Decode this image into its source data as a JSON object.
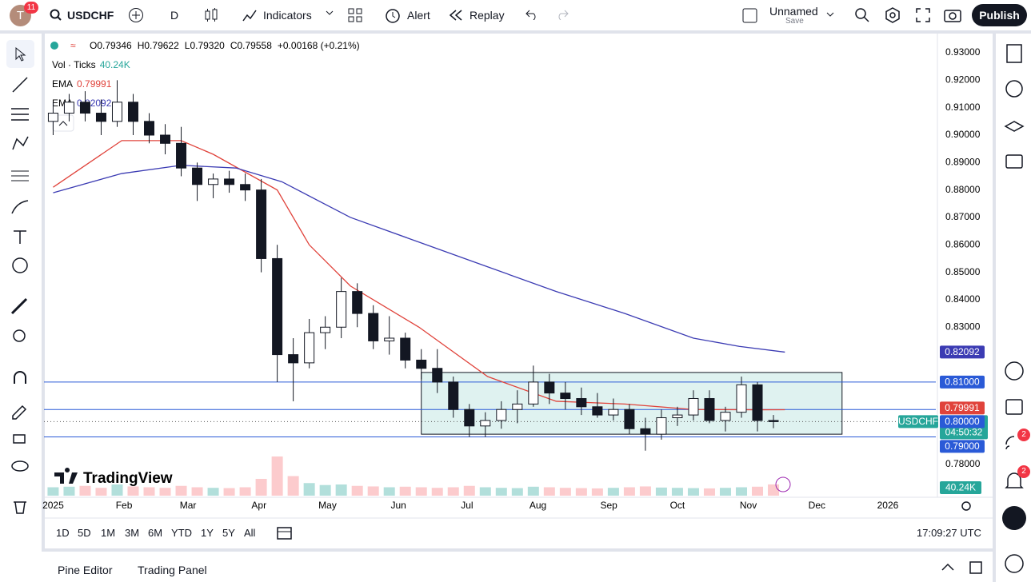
{
  "header": {
    "avatar": "T",
    "avatar_badge": "11",
    "symbol": "USDCHF",
    "interval": "D",
    "indicators": "Indicators",
    "alert": "Alert",
    "replay": "Replay",
    "layout_name": "Unnamed",
    "save": "Save",
    "publish": "Publish"
  },
  "chart_data": {
    "type": "candlestick",
    "legend_ohlc": [
      "O0.79346",
      "H0.79622",
      "L0.79320",
      "C0.79558",
      "+0.00168 (+0.21%)"
    ],
    "volume_label": "Vol · Ticks",
    "volume_value": "40.24K",
    "indicator_legend": [
      {
        "name": "EMA",
        "value": "0.79991",
        "color": "#e0433b"
      },
      {
        "name": "EMA",
        "value": "0.82092",
        "color": "#3b3bb3"
      }
    ],
    "logo": "TradingView",
    "xlim": [
      -4,
      386
    ],
    "xticks": [
      {
        "value": 0,
        "label": "2025"
      },
      {
        "value": 31,
        "label": "Feb"
      },
      {
        "value": 59,
        "label": "Mar"
      },
      {
        "value": 90,
        "label": "Apr"
      },
      {
        "value": 120,
        "label": "May"
      },
      {
        "value": 151,
        "label": "Jun"
      },
      {
        "value": 181,
        "label": "Jul"
      },
      {
        "value": 212,
        "label": "Aug"
      },
      {
        "value": 243,
        "label": "Sep"
      },
      {
        "value": 273,
        "label": "Oct"
      },
      {
        "value": 304,
        "label": "Nov"
      },
      {
        "value": 334,
        "label": "Dec"
      },
      {
        "value": 365,
        "label": "2026"
      }
    ],
    "ylim": [
      0.7686,
      0.937
    ],
    "yticks": [
      {
        "value": 0.93,
        "label": "0.93000"
      },
      {
        "value": 0.92,
        "label": "0.92000"
      },
      {
        "value": 0.91,
        "label": "0.91000"
      },
      {
        "value": 0.9,
        "label": "0.90000"
      },
      {
        "value": 0.89,
        "label": "0.89000"
      },
      {
        "value": 0.88,
        "label": "0.88000"
      },
      {
        "value": 0.87,
        "label": "0.87000"
      },
      {
        "value": 0.86,
        "label": "0.86000"
      },
      {
        "value": 0.85,
        "label": "0.85000"
      },
      {
        "value": 0.84,
        "label": "0.84000"
      },
      {
        "value": 0.83,
        "label": "0.83000"
      },
      {
        "value": 0.78,
        "label": "0.78000"
      }
    ],
    "x": [
      0,
      7,
      14,
      21,
      28,
      35,
      42,
      49,
      56,
      63,
      70,
      77,
      84,
      91,
      98,
      105,
      112,
      119,
      126,
      133,
      140,
      147,
      154,
      161,
      168,
      175,
      182,
      189,
      196,
      203,
      210,
      217,
      224,
      231,
      238,
      245,
      252,
      259,
      266,
      273,
      280,
      287,
      294,
      301,
      308,
      315
    ],
    "open": [
      0.905,
      0.908,
      0.912,
      0.908,
      0.905,
      0.912,
      0.905,
      0.9,
      0.897,
      0.888,
      0.882,
      0.884,
      0.882,
      0.88,
      0.855,
      0.82,
      0.817,
      0.828,
      0.83,
      0.843,
      0.835,
      0.825,
      0.826,
      0.818,
      0.815,
      0.81,
      0.8,
      0.794,
      0.796,
      0.8,
      0.802,
      0.81,
      0.806,
      0.804,
      0.801,
      0.798,
      0.8,
      0.793,
      0.791,
      0.797,
      0.798,
      0.804,
      0.796,
      0.799,
      0.809,
      0.796
    ],
    "high": [
      0.912,
      0.915,
      0.916,
      0.913,
      0.92,
      0.915,
      0.908,
      0.904,
      0.903,
      0.89,
      0.886,
      0.887,
      0.886,
      0.884,
      0.86,
      0.826,
      0.833,
      0.834,
      0.848,
      0.846,
      0.838,
      0.834,
      0.828,
      0.822,
      0.822,
      0.812,
      0.802,
      0.799,
      0.803,
      0.807,
      0.816,
      0.813,
      0.81,
      0.808,
      0.806,
      0.804,
      0.802,
      0.797,
      0.8,
      0.801,
      0.807,
      0.807,
      0.801,
      0.812,
      0.81,
      0.798
    ],
    "low": [
      0.9,
      0.905,
      0.905,
      0.9,
      0.903,
      0.9,
      0.897,
      0.893,
      0.885,
      0.876,
      0.877,
      0.879,
      0.876,
      0.85,
      0.81,
      0.803,
      0.815,
      0.822,
      0.826,
      0.83,
      0.822,
      0.82,
      0.815,
      0.811,
      0.806,
      0.797,
      0.79,
      0.79,
      0.793,
      0.795,
      0.801,
      0.802,
      0.8,
      0.798,
      0.797,
      0.796,
      0.791,
      0.785,
      0.789,
      0.794,
      0.796,
      0.795,
      0.792,
      0.797,
      0.792,
      0.7932
    ],
    "close": [
      0.908,
      0.912,
      0.908,
      0.905,
      0.912,
      0.905,
      0.9,
      0.897,
      0.888,
      0.882,
      0.884,
      0.882,
      0.88,
      0.855,
      0.82,
      0.817,
      0.828,
      0.83,
      0.843,
      0.835,
      0.825,
      0.826,
      0.818,
      0.815,
      0.81,
      0.8,
      0.794,
      0.796,
      0.8,
      0.802,
      0.81,
      0.806,
      0.804,
      0.801,
      0.798,
      0.8,
      0.793,
      0.791,
      0.797,
      0.798,
      0.804,
      0.796,
      0.799,
      0.809,
      0.796,
      0.79558
    ],
    "volume": [
      30,
      32,
      35,
      28,
      40,
      33,
      30,
      28,
      35,
      30,
      28,
      27,
      30,
      60,
      140,
      70,
      45,
      38,
      40,
      35,
      33,
      30,
      32,
      30,
      28,
      30,
      35,
      30,
      28,
      27,
      32,
      30,
      28,
      27,
      26,
      28,
      30,
      33,
      29,
      28,
      27,
      26,
      28,
      30,
      32,
      40.24
    ],
    "volume_lim": [
      0,
      200
    ],
    "up_color": "#ffffff",
    "down_color": "#131722",
    "volume_up_color": "#b2dfdb",
    "volume_down_color": "#fccbcd",
    "series": [
      {
        "name": "EMA",
        "color": "#e0433b",
        "x": [
          0,
          30,
          56,
          70,
          98,
          112,
          130,
          160,
          190,
          220,
          250,
          280,
          310,
          320
        ],
        "values": [
          0.881,
          0.898,
          0.898,
          0.893,
          0.88,
          0.86,
          0.845,
          0.83,
          0.812,
          0.803,
          0.802,
          0.8,
          0.7999,
          0.79991
        ]
      },
      {
        "name": "EMA",
        "color": "#3b3bb3",
        "x": [
          0,
          30,
          56,
          80,
          100,
          130,
          160,
          190,
          220,
          250,
          280,
          300,
          320
        ],
        "values": [
          0.879,
          0.886,
          0.889,
          0.888,
          0.883,
          0.87,
          0.861,
          0.852,
          0.843,
          0.835,
          0.826,
          0.823,
          0.82092
        ]
      }
    ],
    "levels": [
      {
        "value": 0.81,
        "label": "0.81000"
      },
      {
        "value": 0.8,
        "label": "0.80000"
      },
      {
        "value": 0.79,
        "label": "0.79000"
      }
    ],
    "level_color": "#2a5ad7",
    "range_box": {
      "x": [
        161,
        345
      ],
      "y": [
        0.791,
        0.8135
      ],
      "color": "#26a69a"
    },
    "ema_badges": [
      {
        "value": 0.82092,
        "label": "0.82092",
        "color": "#3b3bb3"
      },
      {
        "value": 0.79991,
        "label": "0.79991",
        "color": "#e0433b"
      }
    ],
    "last_price": {
      "symbol": "USDCHF",
      "value": 0.79558,
      "label": "0.79558",
      "countdown": "04:50:32",
      "color": "#26a69a"
    },
    "volume_badge": {
      "value": 40.24,
      "label": "40.24K"
    }
  },
  "range_bar": {
    "buttons": [
      "1D",
      "5D",
      "1M",
      "3M",
      "6M",
      "YTD",
      "1Y",
      "5Y",
      "All"
    ],
    "clock": "17:09:27 UTC"
  },
  "bottom_panel": {
    "tabs": [
      "Pine Editor",
      "Trading Panel"
    ]
  },
  "right_sidebar": {
    "badges": [
      "2",
      "2"
    ]
  }
}
